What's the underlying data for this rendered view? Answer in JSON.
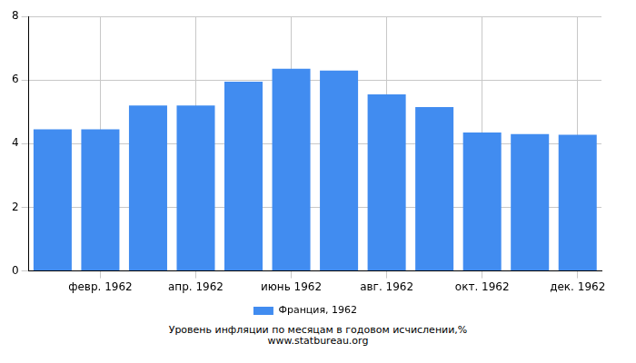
{
  "chart_data": {
    "type": "bar",
    "title": "Уровень инфляции по месяцам в годовом исчислении,%",
    "subtitle": "www.statbureau.org",
    "categories": [
      null,
      "февр. 1962",
      null,
      "апр. 1962",
      null,
      "июнь 1962",
      null,
      "авг. 1962",
      null,
      "окт. 1962",
      null,
      "дек. 1962"
    ],
    "series": [
      {
        "name": "Франция, 1962",
        "color": "#418cf0",
        "values": [
          4.45,
          4.45,
          5.2,
          5.2,
          5.95,
          6.35,
          6.3,
          5.55,
          5.15,
          4.35,
          4.3,
          4.28
        ]
      }
    ],
    "ylim": [
      0,
      8
    ],
    "yticks": [
      0,
      2,
      4,
      6,
      8
    ],
    "grid": true,
    "legend": "bottom"
  }
}
